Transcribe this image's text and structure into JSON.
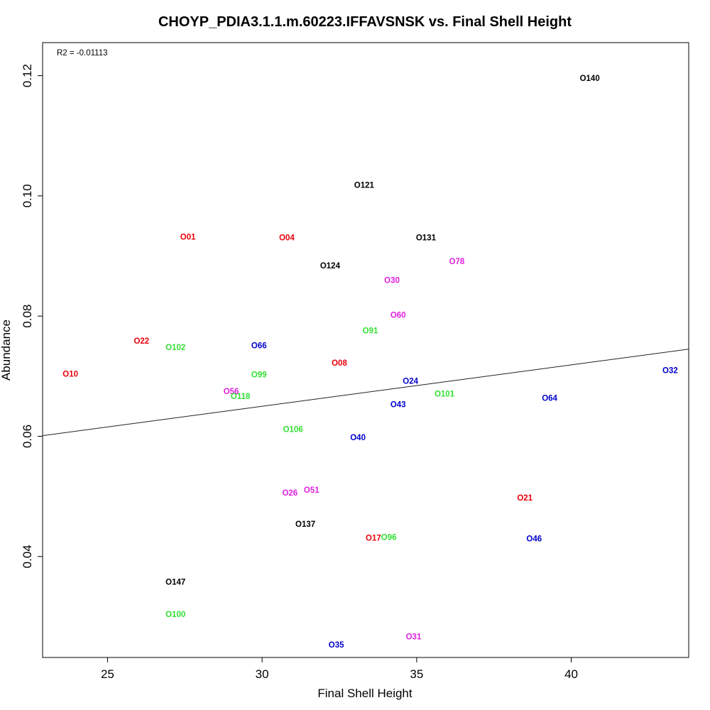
{
  "chart_data": {
    "type": "scatter",
    "title": "CHOYP_PDIA3.1.1.m.60223.IFFAVSNSK vs. Final Shell Height",
    "xlabel": "Final Shell Height",
    "ylabel": "Abundance",
    "annotation": "R2 = -0.01113",
    "xlim": [
      22.9,
      43.8
    ],
    "ylim": [
      0.0232,
      0.1255
    ],
    "x_ticks": [
      {
        "value": 25,
        "label": "25"
      },
      {
        "value": 30,
        "label": "30"
      },
      {
        "value": 35,
        "label": "35"
      },
      {
        "value": 40,
        "label": "40"
      }
    ],
    "y_ticks": [
      {
        "value": 0.04,
        "label": "0.04"
      },
      {
        "value": 0.06,
        "label": "0.06"
      },
      {
        "value": 0.08,
        "label": "0.08"
      },
      {
        "value": 0.1,
        "label": "0.10"
      },
      {
        "value": 0.12,
        "label": "0.12"
      }
    ],
    "regression_line": {
      "x": [
        22.9,
        43.8
      ],
      "y": [
        0.0601,
        0.0745
      ]
    },
    "points": [
      {
        "label": "O140",
        "x": 40.6,
        "y": 0.1196,
        "color": "#000000"
      },
      {
        "label": "O121",
        "x": 33.3,
        "y": 0.1018,
        "color": "#000000"
      },
      {
        "label": "O131",
        "x": 35.3,
        "y": 0.0931,
        "color": "#000000"
      },
      {
        "label": "O124",
        "x": 32.2,
        "y": 0.0884,
        "color": "#000000"
      },
      {
        "label": "O137",
        "x": 31.4,
        "y": 0.0454,
        "color": "#000000"
      },
      {
        "label": "O147",
        "x": 27.2,
        "y": 0.0358,
        "color": "#000000"
      },
      {
        "label": "O01",
        "x": 27.6,
        "y": 0.0932,
        "color": "#e8000b"
      },
      {
        "label": "O04",
        "x": 30.8,
        "y": 0.0931,
        "color": "#e8000b"
      },
      {
        "label": "O22",
        "x": 26.1,
        "y": 0.0759,
        "color": "#e8000b"
      },
      {
        "label": "O10",
        "x": 23.8,
        "y": 0.0704,
        "color": "#e8000b"
      },
      {
        "label": "O08",
        "x": 32.5,
        "y": 0.0722,
        "color": "#e8000b"
      },
      {
        "label": "O21",
        "x": 38.5,
        "y": 0.0498,
        "color": "#e8000b"
      },
      {
        "label": "O17",
        "x": 33.6,
        "y": 0.0431,
        "color": "#e8000b"
      },
      {
        "label": "O78",
        "x": 36.3,
        "y": 0.0891,
        "color": "#e020e0"
      },
      {
        "label": "O30",
        "x": 34.2,
        "y": 0.086,
        "color": "#e020e0"
      },
      {
        "label": "O60",
        "x": 34.4,
        "y": 0.0802,
        "color": "#e020e0"
      },
      {
        "label": "O56",
        "x": 29.0,
        "y": 0.0675,
        "color": "#e020e0"
      },
      {
        "label": "O26",
        "x": 30.9,
        "y": 0.0506,
        "color": "#e020e0"
      },
      {
        "label": "O51",
        "x": 31.6,
        "y": 0.0511,
        "color": "#e020e0"
      },
      {
        "label": "O31",
        "x": 34.9,
        "y": 0.0267,
        "color": "#e020e0"
      },
      {
        "label": "O102",
        "x": 27.2,
        "y": 0.0748,
        "color": "#33e033"
      },
      {
        "label": "O91",
        "x": 33.5,
        "y": 0.0776,
        "color": "#33e033"
      },
      {
        "label": "O99",
        "x": 29.9,
        "y": 0.0703,
        "color": "#33e033"
      },
      {
        "label": "O118",
        "x": 29.3,
        "y": 0.0667,
        "color": "#33e033"
      },
      {
        "label": "O101",
        "x": 35.9,
        "y": 0.0671,
        "color": "#33e033"
      },
      {
        "label": "O106",
        "x": 31.0,
        "y": 0.0612,
        "color": "#33e033"
      },
      {
        "label": "O96",
        "x": 34.1,
        "y": 0.0432,
        "color": "#33e033"
      },
      {
        "label": "O100",
        "x": 27.2,
        "y": 0.0304,
        "color": "#33e033"
      },
      {
        "label": "O66",
        "x": 29.9,
        "y": 0.0751,
        "color": "#0000cc"
      },
      {
        "label": "O24",
        "x": 34.8,
        "y": 0.0692,
        "color": "#0000cc"
      },
      {
        "label": "O32",
        "x": 43.2,
        "y": 0.071,
        "color": "#0000cc"
      },
      {
        "label": "O43",
        "x": 34.4,
        "y": 0.0653,
        "color": "#0000cc"
      },
      {
        "label": "O64",
        "x": 39.3,
        "y": 0.0664,
        "color": "#0000cc"
      },
      {
        "label": "O40",
        "x": 33.1,
        "y": 0.0598,
        "color": "#0000cc"
      },
      {
        "label": "O46",
        "x": 38.8,
        "y": 0.043,
        "color": "#0000cc"
      },
      {
        "label": "O35",
        "x": 32.4,
        "y": 0.0253,
        "color": "#0000cc"
      }
    ]
  }
}
